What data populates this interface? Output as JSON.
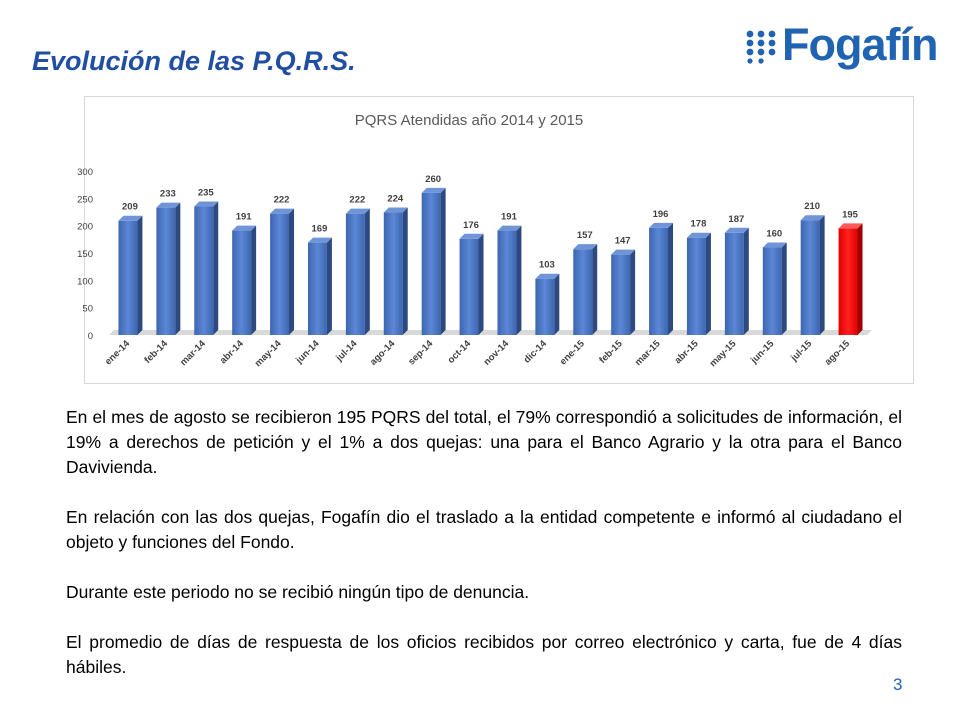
{
  "slide": {
    "title": "Evolución de las P.Q.R.S.",
    "logo_text": "Fogafín",
    "page_number": "3"
  },
  "paragraphs": [
    "En el mes de agosto se recibieron 195 PQRS del total, el 79% correspondió a solicitudes de información, el 19% a derechos de petición y el 1% a dos quejas: una para el Banco Agrario y la otra para el Banco Davivienda.",
    "En relación con las dos quejas, Fogafín dio el traslado a la entidad competente e informó al ciudadano el objeto y funciones del Fondo.",
    "Durante este periodo no se recibió ningún tipo de denuncia.",
    "El promedio de días de respuesta de los oficios recibidos por correo electrónico y carta, fue de 4 días hábiles."
  ],
  "colors": {
    "title": "#1f4ea3",
    "logo": "#1f63b2",
    "bar": "#4472c4",
    "bar_highlight": "#ff0000"
  },
  "chart_data": {
    "type": "bar",
    "title": "PQRS Atendidas año 2014 y 2015",
    "xlabel": "",
    "ylabel": "",
    "categories": [
      "ene-14",
      "feb-14",
      "mar-14",
      "abr-14",
      "may-14",
      "jun-14",
      "jul-14",
      "ago-14",
      "sep-14",
      "oct-14",
      "nov-14",
      "dic-14",
      "ene-15",
      "feb-15",
      "mar-15",
      "abr-15",
      "may-15",
      "jun-15",
      "jul-15",
      "ago-15"
    ],
    "values": [
      209,
      233,
      235,
      191,
      222,
      169,
      222,
      224,
      260,
      176,
      191,
      103,
      157,
      147,
      196,
      178,
      187,
      160,
      210,
      195
    ],
    "ylim": [
      0,
      300
    ],
    "yticks": [
      0,
      50,
      100,
      150,
      200,
      250,
      300
    ],
    "grid": false,
    "legend": "none",
    "highlight_category": "ago-15",
    "data_labels": true
  }
}
